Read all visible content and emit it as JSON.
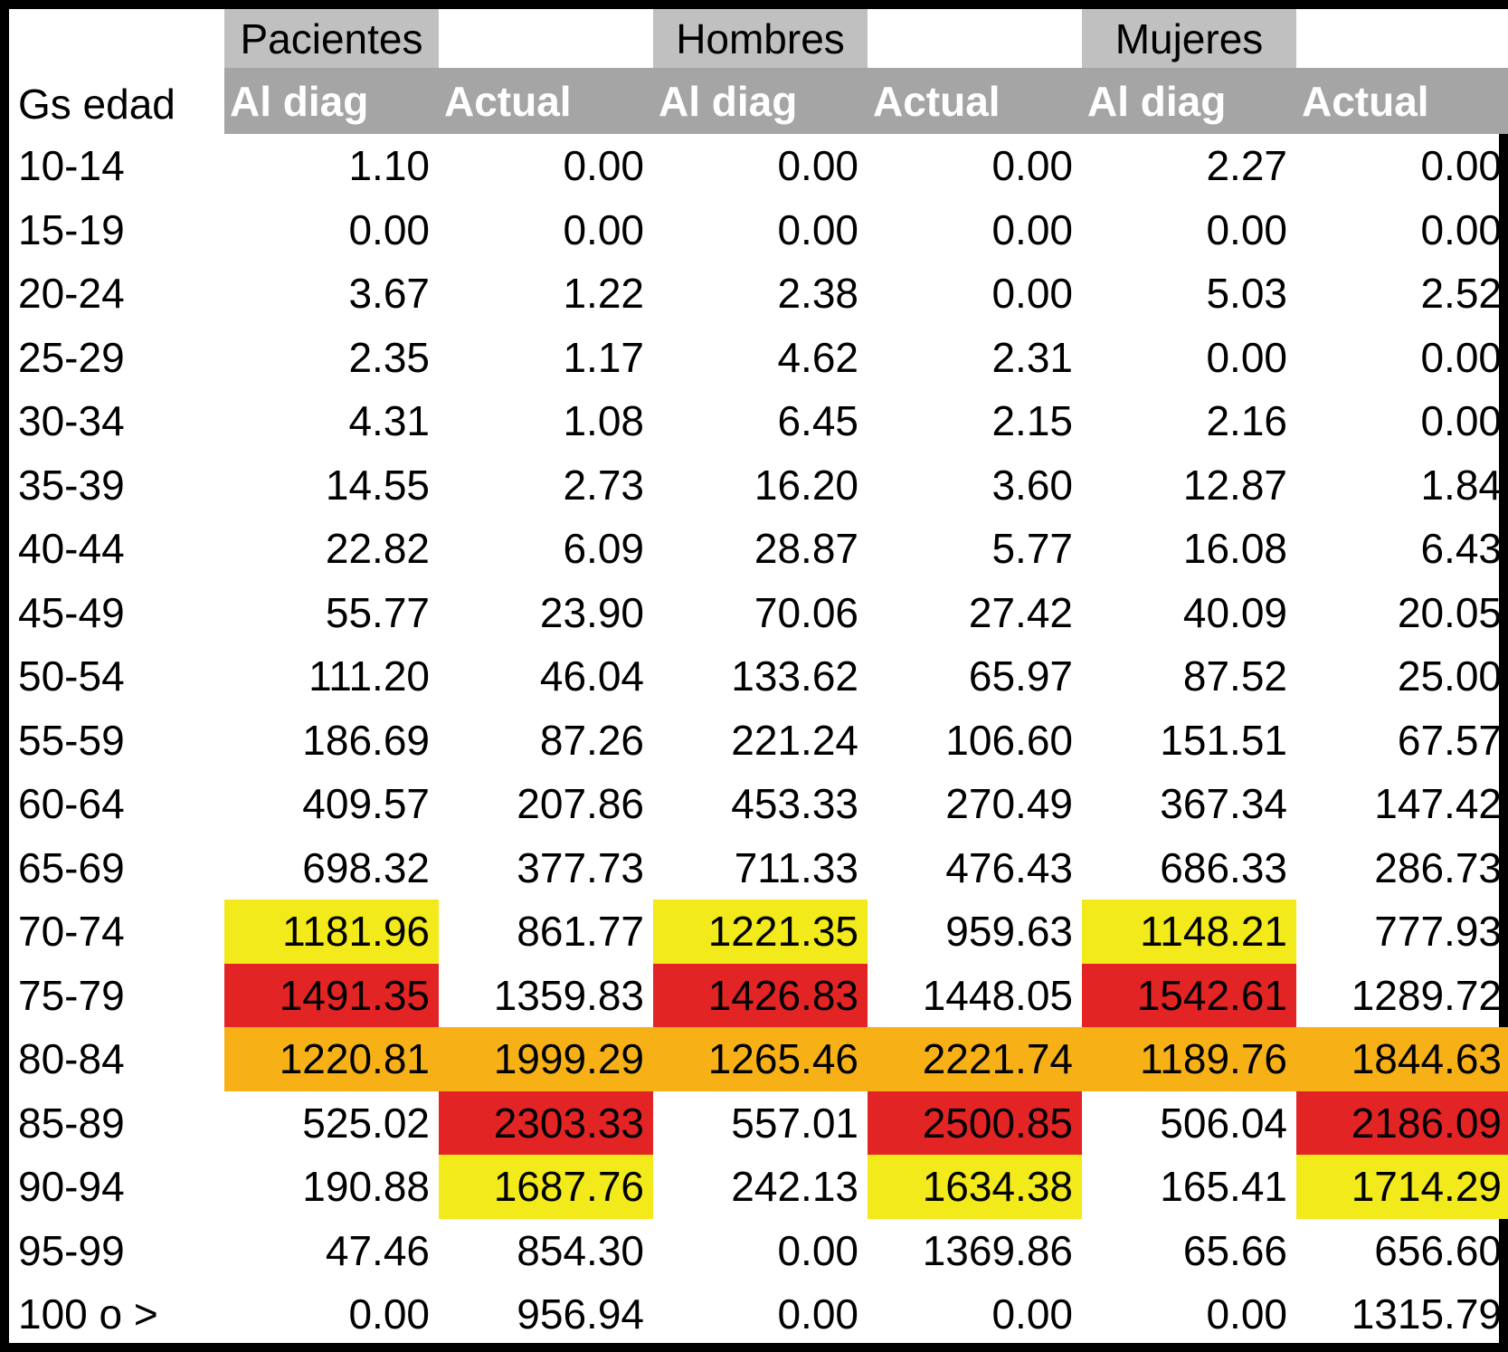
{
  "header": {
    "age_group_label": "Gs edad",
    "groups": [
      "Pacientes",
      "Hombres",
      "Mujeres"
    ],
    "subcolumns": [
      "Al diag",
      "Actual",
      "Al diag",
      "Actual",
      "Al diag",
      "Actual"
    ]
  },
  "highlight_colors": {
    "yellow": "#f2ea1a",
    "red": "#e32425",
    "orange": "#f7b016",
    "group_header_gray": "#c0c0c0",
    "subheader_gray": "#a5a5a5"
  },
  "rows": [
    {
      "age": "10-14",
      "values": [
        "1.10",
        "0.00",
        "0.00",
        "0.00",
        "2.27",
        "0.00"
      ],
      "highlights": [
        "",
        "",
        "",
        "",
        "",
        ""
      ]
    },
    {
      "age": "15-19",
      "values": [
        "0.00",
        "0.00",
        "0.00",
        "0.00",
        "0.00",
        "0.00"
      ],
      "highlights": [
        "",
        "",
        "",
        "",
        "",
        ""
      ]
    },
    {
      "age": "20-24",
      "values": [
        "3.67",
        "1.22",
        "2.38",
        "0.00",
        "5.03",
        "2.52"
      ],
      "highlights": [
        "",
        "",
        "",
        "",
        "",
        ""
      ]
    },
    {
      "age": "25-29",
      "values": [
        "2.35",
        "1.17",
        "4.62",
        "2.31",
        "0.00",
        "0.00"
      ],
      "highlights": [
        "",
        "",
        "",
        "",
        "",
        ""
      ]
    },
    {
      "age": "30-34",
      "values": [
        "4.31",
        "1.08",
        "6.45",
        "2.15",
        "2.16",
        "0.00"
      ],
      "highlights": [
        "",
        "",
        "",
        "",
        "",
        ""
      ]
    },
    {
      "age": "35-39",
      "values": [
        "14.55",
        "2.73",
        "16.20",
        "3.60",
        "12.87",
        "1.84"
      ],
      "highlights": [
        "",
        "",
        "",
        "",
        "",
        ""
      ]
    },
    {
      "age": "40-44",
      "values": [
        "22.82",
        "6.09",
        "28.87",
        "5.77",
        "16.08",
        "6.43"
      ],
      "highlights": [
        "",
        "",
        "",
        "",
        "",
        ""
      ]
    },
    {
      "age": "45-49",
      "values": [
        "55.77",
        "23.90",
        "70.06",
        "27.42",
        "40.09",
        "20.05"
      ],
      "highlights": [
        "",
        "",
        "",
        "",
        "",
        ""
      ]
    },
    {
      "age": "50-54",
      "values": [
        "111.20",
        "46.04",
        "133.62",
        "65.97",
        "87.52",
        "25.00"
      ],
      "highlights": [
        "",
        "",
        "",
        "",
        "",
        ""
      ]
    },
    {
      "age": "55-59",
      "values": [
        "186.69",
        "87.26",
        "221.24",
        "106.60",
        "151.51",
        "67.57"
      ],
      "highlights": [
        "",
        "",
        "",
        "",
        "",
        ""
      ]
    },
    {
      "age": "60-64",
      "values": [
        "409.57",
        "207.86",
        "453.33",
        "270.49",
        "367.34",
        "147.42"
      ],
      "highlights": [
        "",
        "",
        "",
        "",
        "",
        ""
      ]
    },
    {
      "age": "65-69",
      "values": [
        "698.32",
        "377.73",
        "711.33",
        "476.43",
        "686.33",
        "286.73"
      ],
      "highlights": [
        "",
        "",
        "",
        "",
        "",
        ""
      ]
    },
    {
      "age": "70-74",
      "values": [
        "1181.96",
        "861.77",
        "1221.35",
        "959.63",
        "1148.21",
        "777.93"
      ],
      "highlights": [
        "yellow",
        "",
        "yellow",
        "",
        "yellow",
        ""
      ]
    },
    {
      "age": "75-79",
      "values": [
        "1491.35",
        "1359.83",
        "1426.83",
        "1448.05",
        "1542.61",
        "1289.72"
      ],
      "highlights": [
        "red",
        "",
        "red",
        "",
        "red",
        ""
      ]
    },
    {
      "age": "80-84",
      "values": [
        "1220.81",
        "1999.29",
        "1265.46",
        "2221.74",
        "1189.76",
        "1844.63"
      ],
      "highlights": [
        "orange",
        "orange",
        "orange",
        "orange",
        "orange",
        "orange"
      ]
    },
    {
      "age": "85-89",
      "values": [
        "525.02",
        "2303.33",
        "557.01",
        "2500.85",
        "506.04",
        "2186.09"
      ],
      "highlights": [
        "",
        "red",
        "",
        "red",
        "",
        "red"
      ]
    },
    {
      "age": "90-94",
      "values": [
        "190.88",
        "1687.76",
        "242.13",
        "1634.38",
        "165.41",
        "1714.29"
      ],
      "highlights": [
        "",
        "yellow",
        "",
        "yellow",
        "",
        "yellow"
      ]
    },
    {
      "age": "95-99",
      "values": [
        "47.46",
        "854.30",
        "0.00",
        "1369.86",
        "65.66",
        "656.60"
      ],
      "highlights": [
        "",
        "",
        "",
        "",
        "",
        ""
      ]
    },
    {
      "age": "100 o >",
      "values": [
        "0.00",
        "956.94",
        "0.00",
        "0.00",
        "0.00",
        "1315.79"
      ],
      "highlights": [
        "",
        "",
        "",
        "",
        "",
        ""
      ]
    }
  ]
}
